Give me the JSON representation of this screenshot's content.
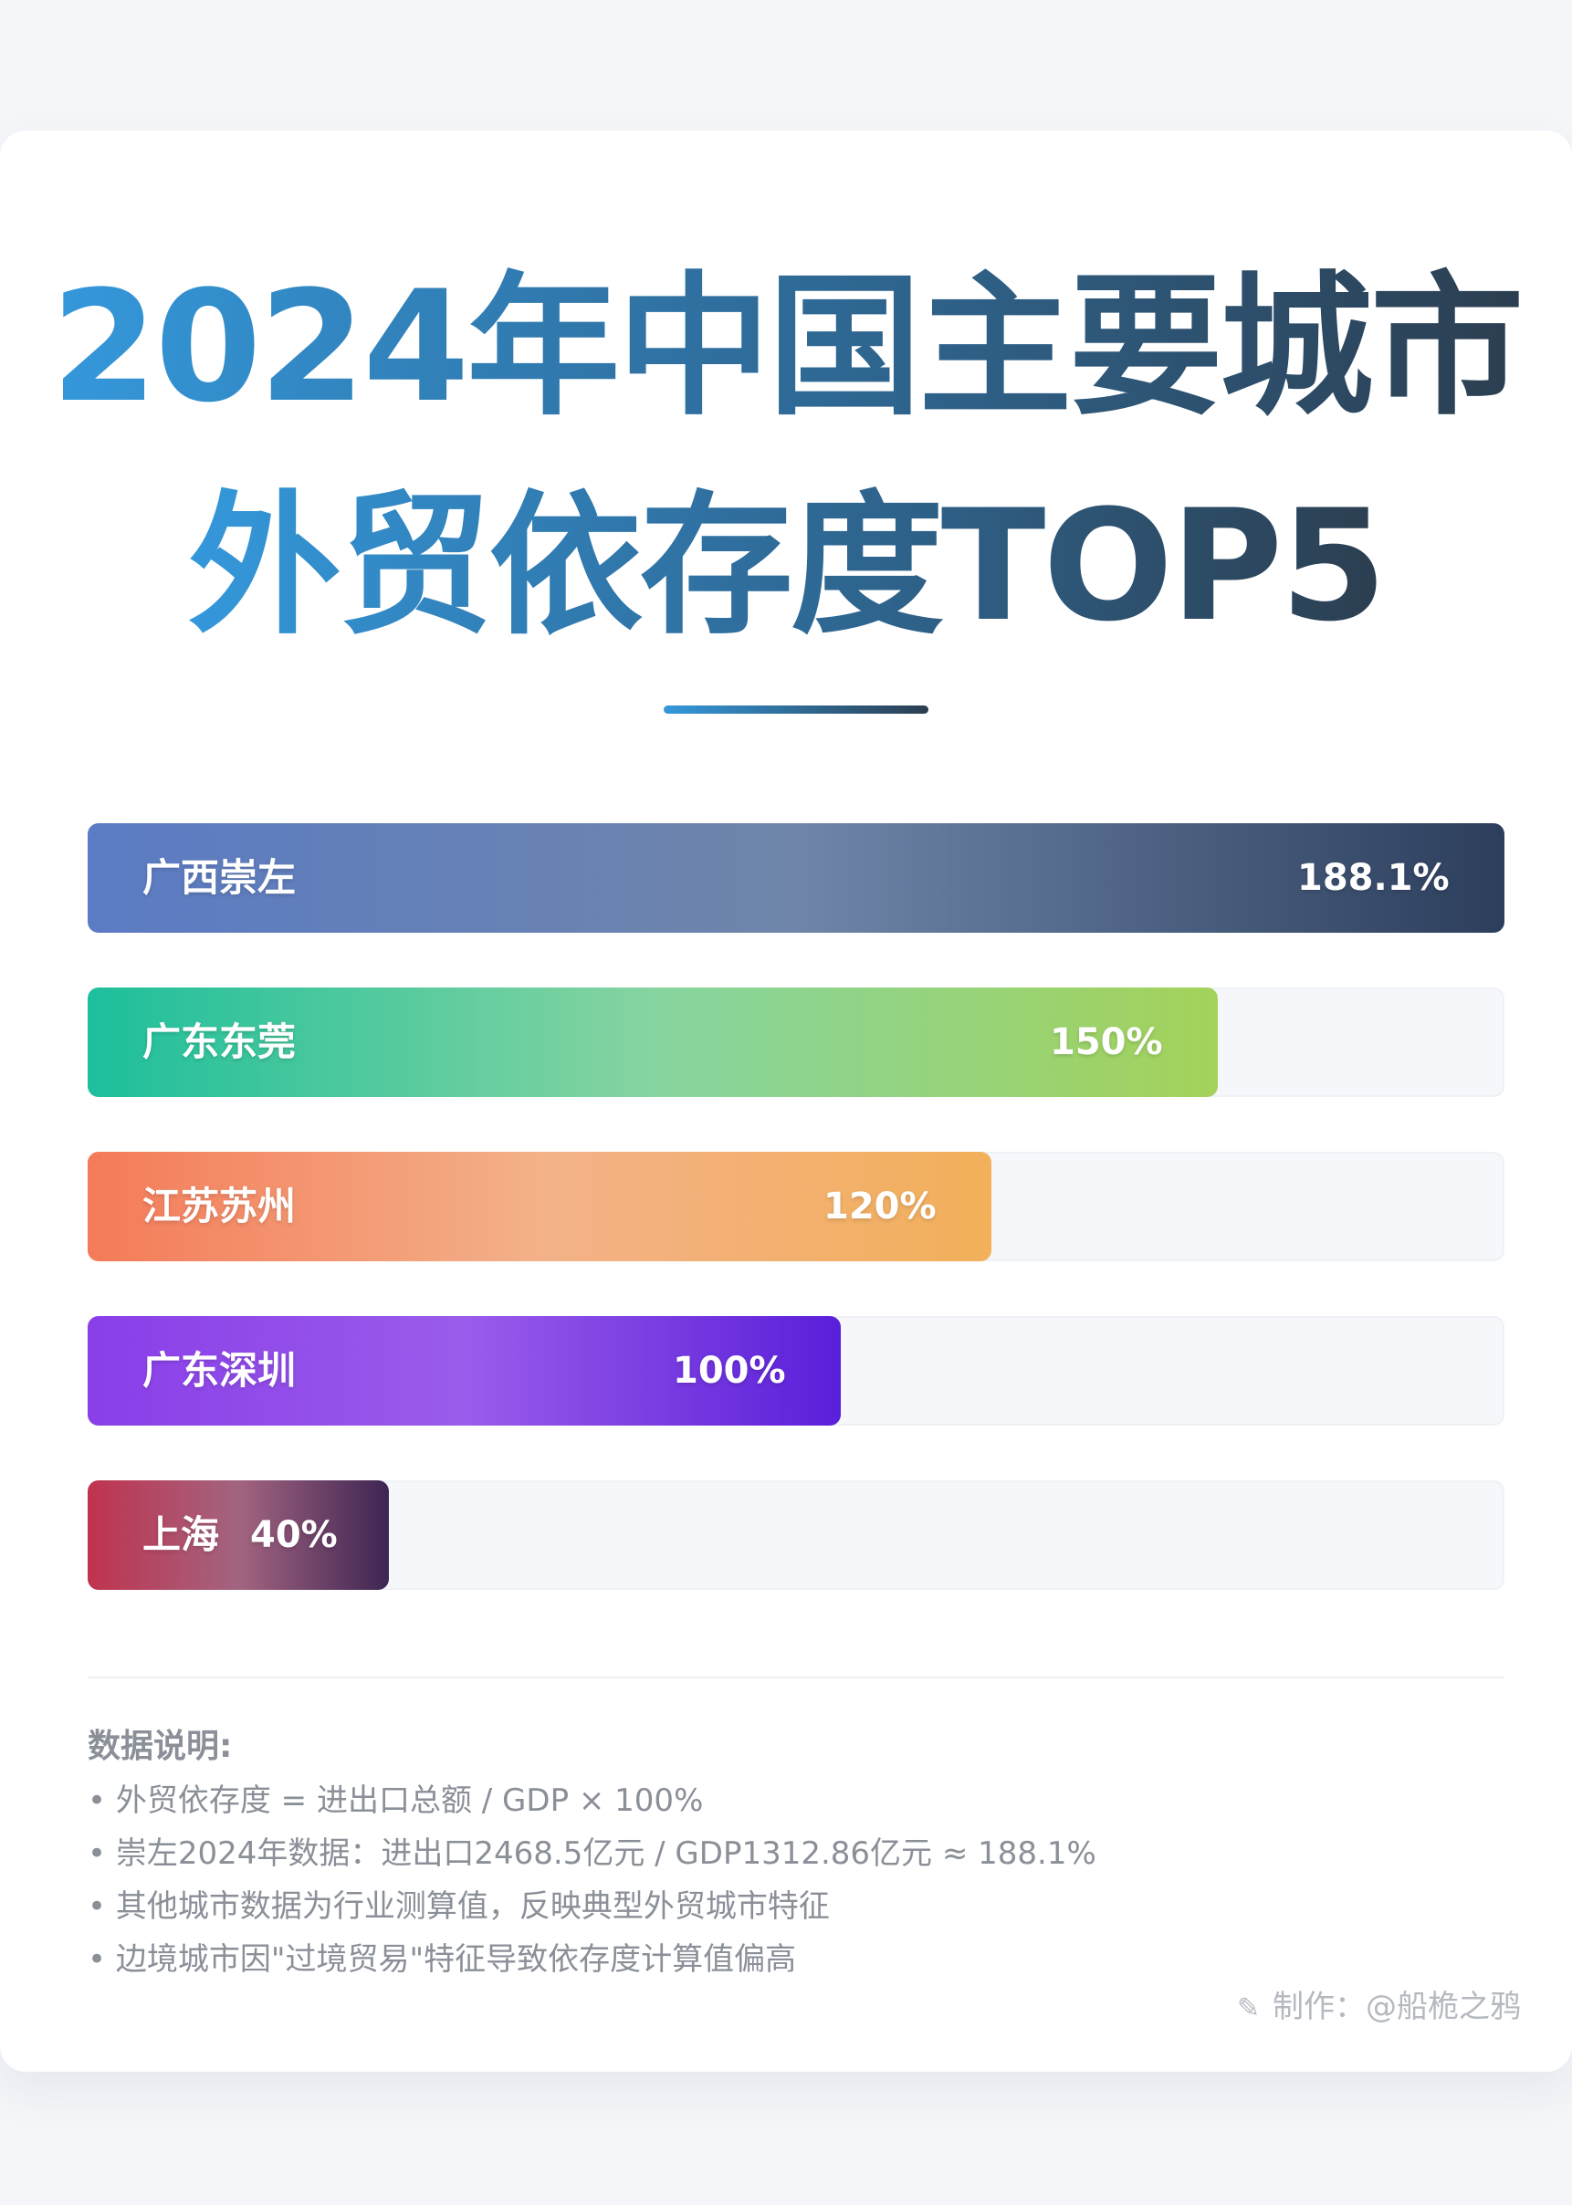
{
  "title": {
    "line1": "2024年中国主要城市",
    "line2": "外贸依存度TOP5"
  },
  "chart_data": {
    "type": "bar",
    "orientation": "horizontal",
    "categories": [
      "广西崇左",
      "广东东莞",
      "江苏苏州",
      "广东深圳",
      "上海"
    ],
    "values": [
      188.1,
      150,
      120,
      100,
      40
    ],
    "value_labels": [
      "188.1%",
      "150%",
      "120%",
      "100%",
      "40%"
    ],
    "xlim": [
      0,
      188.1
    ],
    "colors": [
      [
        "#5b7bc4",
        "#6f86aa",
        "#2c3e5c"
      ],
      [
        "#1dbf9c",
        "#86d4a0",
        "#a4d25a"
      ],
      [
        "#f47b59",
        "#f3b189",
        "#f2b05a"
      ],
      [
        "#8a3ee8",
        "#9a5ceb",
        "#5a1fd9"
      ],
      [
        "#c0334e",
        "#a36480",
        "#3e2553"
      ]
    ],
    "grid": false,
    "legend": "none"
  },
  "notes": {
    "heading": "数据说明:",
    "items": [
      "• 外贸依存度 = 进出口总额 / GDP × 100%",
      "• 崇左2024年数据：进出口2468.5亿元 / GDP1312.86亿元 ≈ 188.1%",
      "• 其他城市数据为行业测算值，反映典型外贸城市特征",
      "• 边境城市因\"过境贸易\"特征导致依存度计算值偏高"
    ]
  },
  "credit": {
    "icon": "pen-icon",
    "text": "制作：@船桅之鸦"
  }
}
